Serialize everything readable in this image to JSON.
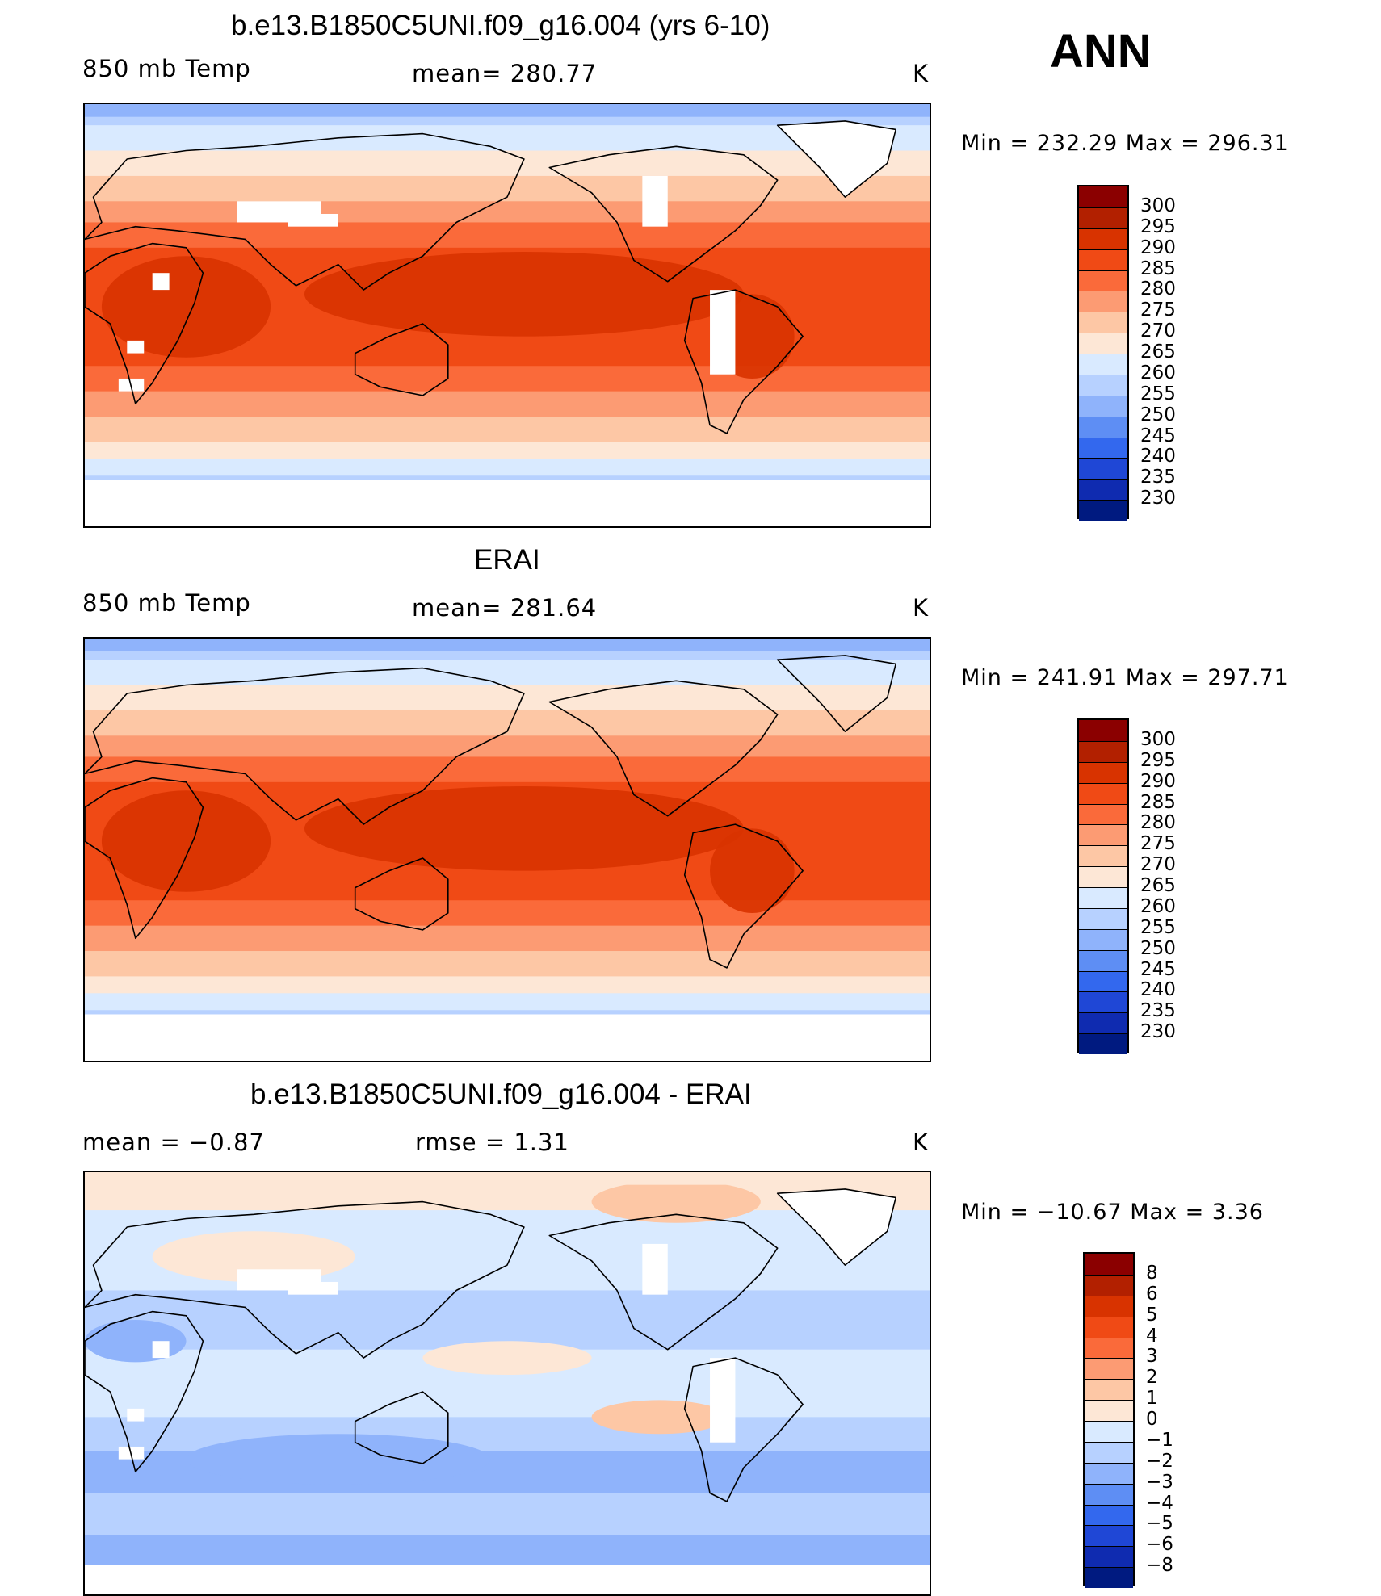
{
  "season_label": "ANN",
  "units_label": "K",
  "panels": [
    {
      "title": "b.e13.B1850C5UNI.f09_g16.004 (yrs 6-10)",
      "left_label": "850 mb Temp",
      "center_label": "mean= 280.77",
      "minmax_label": "Min = 232.29 Max = 296.31",
      "kind": "abs",
      "white_patches": true
    },
    {
      "title": "ERAI",
      "left_label": "850 mb Temp",
      "center_label": "mean= 281.64",
      "minmax_label": "Min = 241.91 Max = 297.71",
      "kind": "abs",
      "white_patches": false
    },
    {
      "title": "b.e13.B1850C5UNI.f09_g16.004 - ERAI",
      "left_label": "mean =   −0.87",
      "center_label": "rmse =    1.31",
      "minmax_label": "Min = −10.67 Max =    3.36",
      "kind": "diff",
      "white_patches": true
    }
  ],
  "chart_data": [
    {
      "type": "heatmap",
      "title": "b.e13.B1850C5UNI.f09_g16.004 (yrs 6-10)",
      "field": "850 mb Temp",
      "units": "K",
      "season": "ANN",
      "mean": 280.77,
      "min": 232.29,
      "max": 296.31,
      "colorbar_levels": [
        "300",
        "295",
        "290",
        "285",
        "280",
        "275",
        "270",
        "265",
        "260",
        "255",
        "250",
        "245",
        "240",
        "235",
        "230"
      ],
      "colorbar_colors": [
        "#8b0000",
        "#b22000",
        "#d83300",
        "#f04a15",
        "#fa6a3a",
        "#fc9b73",
        "#fdc7a5",
        "#fde7d6",
        "#d9eaff",
        "#b7d1ff",
        "#8fb3fb",
        "#5e8ef4",
        "#3368ee",
        "#1f47d6",
        "#0f2bb0",
        "#001a80"
      ]
    },
    {
      "type": "heatmap",
      "title": "ERAI",
      "field": "850 mb Temp",
      "units": "K",
      "season": "ANN",
      "mean": 281.64,
      "min": 241.91,
      "max": 297.71,
      "colorbar_levels": [
        "300",
        "295",
        "290",
        "285",
        "280",
        "275",
        "270",
        "265",
        "260",
        "255",
        "250",
        "245",
        "240",
        "235",
        "230"
      ],
      "colorbar_colors": [
        "#8b0000",
        "#b22000",
        "#d83300",
        "#f04a15",
        "#fa6a3a",
        "#fc9b73",
        "#fdc7a5",
        "#fde7d6",
        "#d9eaff",
        "#b7d1ff",
        "#8fb3fb",
        "#5e8ef4",
        "#3368ee",
        "#1f47d6",
        "#0f2bb0",
        "#001a80"
      ]
    },
    {
      "type": "heatmap",
      "title": "b.e13.B1850C5UNI.f09_g16.004 - ERAI",
      "units": "K",
      "season": "ANN",
      "mean": -0.87,
      "rmse": 1.31,
      "min": -10.67,
      "max": 3.36,
      "colorbar_levels": [
        "8",
        "6",
        "5",
        "4",
        "3",
        "2",
        "1",
        "0",
        "−1",
        "−2",
        "−3",
        "−4",
        "−5",
        "−6",
        "−8"
      ],
      "colorbar_colors": [
        "#8b0000",
        "#b22000",
        "#d83300",
        "#f04a15",
        "#fa6a3a",
        "#fc9b73",
        "#fdc7a5",
        "#fde7d6",
        "#d9eaff",
        "#b7d1ff",
        "#8fb3fb",
        "#5e8ef4",
        "#3368ee",
        "#1f47d6",
        "#0f2bb0",
        "#001a80"
      ]
    }
  ]
}
